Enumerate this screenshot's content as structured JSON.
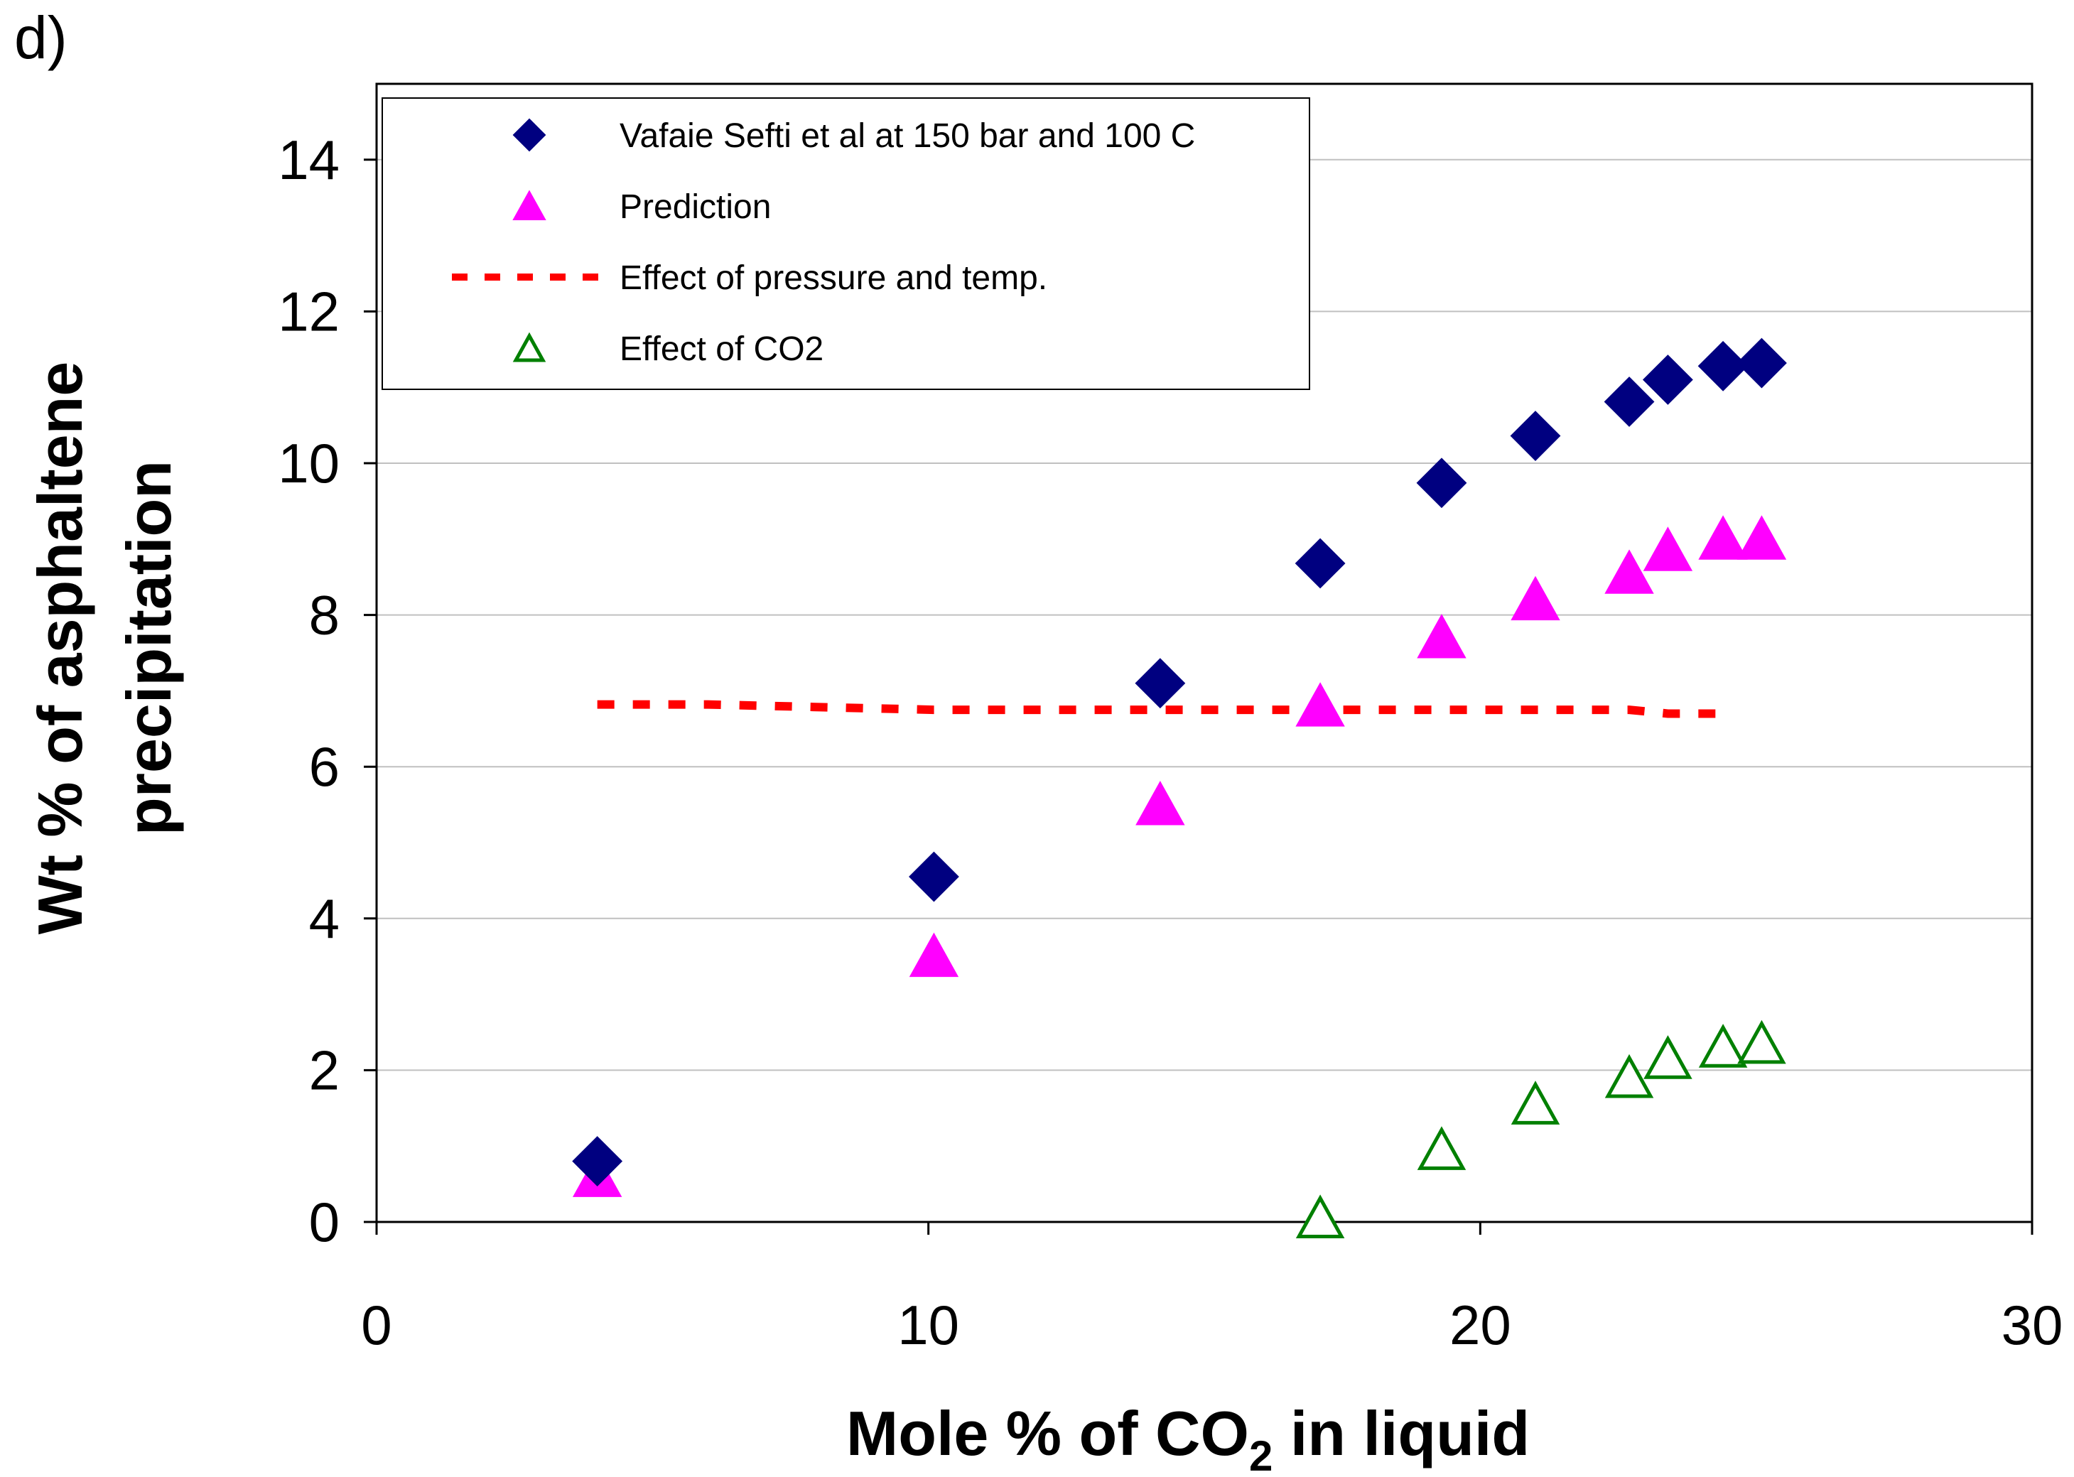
{
  "panel_label": "d)",
  "chart_data": {
    "type": "scatter",
    "title": "",
    "xlabel_main": "Mole %  of CO",
    "xlabel_sub": "2",
    "xlabel_tail": " in liquid",
    "ylabel_line1": "Wt % of asphaltene",
    "ylabel_line2": "precipitation",
    "xlim": [
      0,
      30
    ],
    "ylim": [
      0,
      15
    ],
    "xticks": [
      0,
      10,
      20,
      30
    ],
    "yticks": [
      0,
      2,
      4,
      6,
      8,
      10,
      12,
      14
    ],
    "gridlines": "horizontal",
    "legend_position": "top-left",
    "series": [
      {
        "name": "Vafaie Sefti  et al  at 150  bar and 100 C",
        "marker": "diamond",
        "color": "#000080",
        "x": [
          4,
          10.1,
          14.2,
          17.1,
          19.3,
          21,
          22.7,
          23.4,
          24.4,
          25.1
        ],
        "y": [
          0.8,
          4.55,
          7.1,
          8.68,
          9.74,
          10.36,
          10.81,
          11.1,
          11.28,
          11.32
        ]
      },
      {
        "name": "Prediction",
        "marker": "triangle-filled",
        "color": "#FF00FF",
        "x": [
          4,
          10.1,
          14.2,
          17.1,
          19.3,
          21,
          22.7,
          23.4,
          24.4,
          25.1
        ],
        "y": [
          0.55,
          3.45,
          5.45,
          6.75,
          7.65,
          8.15,
          8.5,
          8.8,
          8.95,
          8.95
        ]
      },
      {
        "name": "Effect of pressure and temp.",
        "marker": "dashed-line",
        "color": "#FF0000",
        "x": [
          4,
          6,
          10.1,
          14.2,
          17.1,
          19.3,
          21,
          22.7,
          23.4,
          24.4
        ],
        "y": [
          6.82,
          6.82,
          6.75,
          6.75,
          6.75,
          6.75,
          6.75,
          6.75,
          6.7,
          6.7
        ]
      },
      {
        "name": "Effect of CO2",
        "marker": "triangle-open",
        "color": "#008000",
        "x": [
          17.1,
          19.3,
          21,
          22.7,
          23.4,
          24.4,
          25.1
        ],
        "y": [
          0,
          0.9,
          1.5,
          1.85,
          2.1,
          2.25,
          2.3
        ]
      }
    ]
  }
}
